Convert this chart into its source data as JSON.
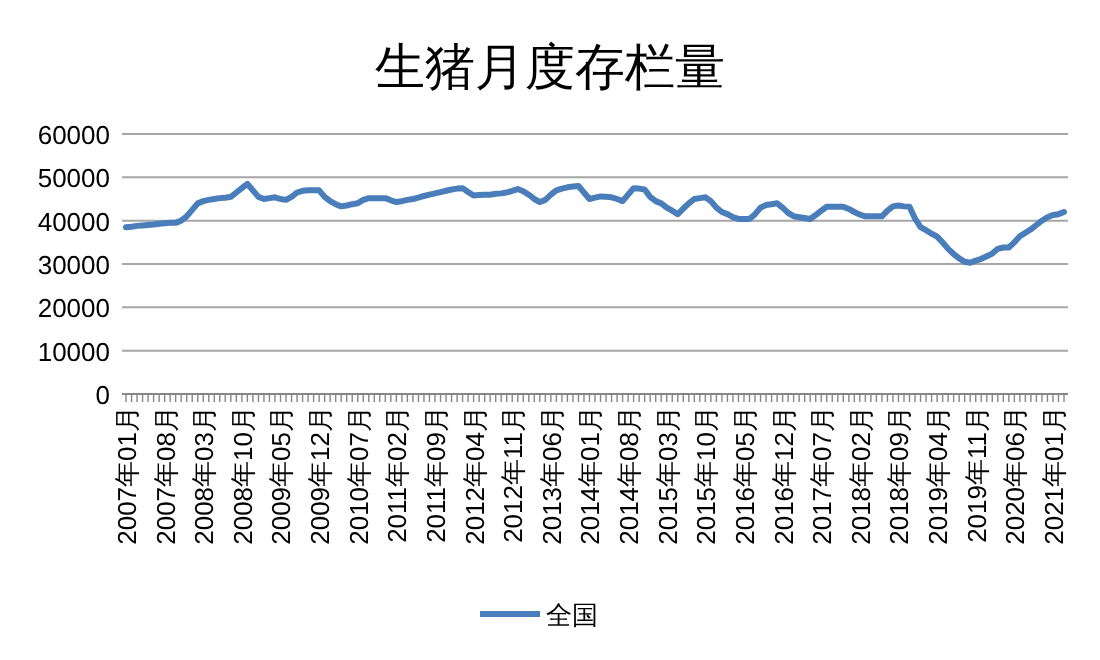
{
  "chart_data": {
    "type": "line",
    "title": "生猪月度存栏量",
    "categories": [
      "2007年01月",
      null,
      null,
      null,
      null,
      null,
      null,
      "2007年08月",
      null,
      null,
      null,
      null,
      null,
      null,
      "2008年03月",
      null,
      null,
      null,
      null,
      null,
      null,
      "2008年10月",
      null,
      null,
      null,
      null,
      null,
      null,
      "2009年05月",
      null,
      null,
      null,
      null,
      null,
      null,
      "2009年12月",
      null,
      null,
      null,
      null,
      null,
      null,
      "2010年07月",
      null,
      null,
      null,
      null,
      null,
      null,
      "2011年02月",
      null,
      null,
      null,
      null,
      null,
      null,
      "2011年09月",
      null,
      null,
      null,
      null,
      null,
      null,
      "2012年04月",
      null,
      null,
      null,
      null,
      null,
      null,
      "2012年11月",
      null,
      null,
      null,
      null,
      null,
      null,
      "2013年06月",
      null,
      null,
      null,
      null,
      null,
      null,
      "2014年01月",
      null,
      null,
      null,
      null,
      null,
      null,
      "2014年08月",
      null,
      null,
      null,
      null,
      null,
      null,
      "2015年03月",
      null,
      null,
      null,
      null,
      null,
      null,
      "2015年10月",
      null,
      null,
      null,
      null,
      null,
      null,
      "2016年05月",
      null,
      null,
      null,
      null,
      null,
      null,
      "2016年12月",
      null,
      null,
      null,
      null,
      null,
      null,
      "2017年07月",
      null,
      null,
      null,
      null,
      null,
      null,
      "2018年02月",
      null,
      null,
      null,
      null,
      null,
      null,
      "2018年09月",
      null,
      null,
      null,
      null,
      null,
      null,
      "2019年04月",
      null,
      null,
      null,
      null,
      null,
      null,
      "2019年11月",
      null,
      null,
      null,
      null,
      null,
      null,
      "2020年06月",
      null,
      null,
      null,
      null,
      null,
      null,
      "2021年01月",
      null,
      null
    ],
    "series": [
      {
        "name": "全国",
        "color": "#4a7ebb",
        "values": [
          38500,
          38600,
          38800,
          38900,
          39000,
          39100,
          39300,
          39400,
          39500,
          39500,
          40000,
          41000,
          42500,
          44000,
          44500,
          44800,
          45000,
          45200,
          45300,
          45500,
          46500,
          47500,
          48500,
          47000,
          45500,
          45000,
          45200,
          45400,
          45000,
          44800,
          45500,
          46500,
          46900,
          47000,
          47000,
          47000,
          45500,
          44500,
          43800,
          43300,
          43500,
          43800,
          44000,
          44800,
          45200,
          45200,
          45200,
          45200,
          44700,
          44300,
          44500,
          44800,
          45000,
          45300,
          45700,
          46000,
          46300,
          46600,
          46900,
          47200,
          47400,
          47500,
          46600,
          45800,
          45900,
          46000,
          46000,
          46200,
          46300,
          46500,
          46900,
          47300,
          46800,
          46000,
          45000,
          44300,
          44800,
          46000,
          47000,
          47400,
          47700,
          47900,
          48000,
          46500,
          45000,
          45300,
          45600,
          45500,
          45400,
          45000,
          44500,
          46000,
          47500,
          47400,
          47200,
          45500,
          44500,
          44000,
          43000,
          42300,
          41500,
          42800,
          44000,
          45000,
          45200,
          45400,
          44500,
          43000,
          42000,
          41500,
          40800,
          40400,
          40400,
          40400,
          41500,
          43000,
          43600,
          43800,
          44000,
          43000,
          41800,
          41000,
          40800,
          40600,
          40400,
          41300,
          42300,
          43200,
          43200,
          43200,
          43200,
          42700,
          42000,
          41400,
          41000,
          41000,
          41000,
          41000,
          42300,
          43300,
          43500,
          43300,
          43200,
          40500,
          38500,
          37800,
          37000,
          36300,
          35000,
          33500,
          32300,
          31300,
          30500,
          30300,
          30800,
          31200,
          31800,
          32400,
          33500,
          33800,
          33800,
          35000,
          36400,
          37200,
          38000,
          39000,
          40000,
          40800,
          41300,
          41500,
          42000
        ]
      }
    ],
    "ylim": [
      0,
      60000
    ],
    "yticks": [
      0,
      10000,
      20000,
      30000,
      40000,
      50000,
      60000
    ],
    "grid": "y",
    "legend": "bottom"
  }
}
